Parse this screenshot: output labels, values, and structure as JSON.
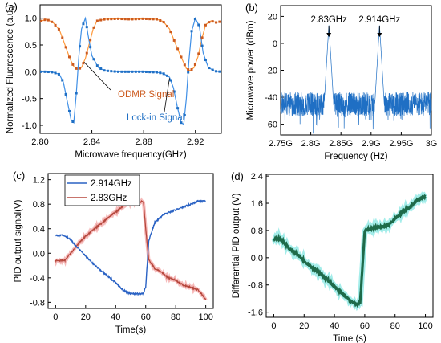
{
  "colors": {
    "odmr": "#cc5a1e",
    "odmr_line": "#ff9a3c",
    "lockin": "#1f6fc4",
    "lockin_line": "#3f8fe6",
    "spectrum": "#1f6fc4",
    "pid_blue": "#2a62c4",
    "pid_red": "#b5473c",
    "pid_red_shadow": "#f3a3a3",
    "diff": "#1e6b4a",
    "diff_shadow": "#7ee6e1"
  },
  "chart_data": [
    {
      "panel": "(a)",
      "type": "scatter",
      "xlabel": "Microwave frequency(GHz)",
      "ylabel": "Normalized Fluorescence (a.u.)",
      "xlim": [
        2.8,
        2.94
      ],
      "ylim": [
        -1.15,
        1.25
      ],
      "xticks": [
        "2.80",
        "2.84",
        "2.88",
        "2.92"
      ],
      "yticks": [
        "-1.0",
        "-0.5",
        "0.0",
        "0.5",
        "1.0"
      ],
      "annotations": [
        "ODMR Signal",
        "Lock-in Signal"
      ],
      "series": [
        {
          "x": [
            2.8,
            2.805,
            2.81,
            2.815,
            2.82,
            2.823,
            2.826,
            2.829,
            2.832,
            2.835,
            2.838,
            2.841,
            2.844,
            2.85,
            2.86,
            2.87,
            2.88,
            2.89,
            2.895,
            2.9,
            2.905,
            2.91,
            2.913,
            2.916,
            2.919,
            2.922,
            2.925,
            2.928,
            2.932,
            2.936,
            2.94
          ],
          "values": [
            0.94,
            0.98,
            0.92,
            0.78,
            0.45,
            0.25,
            0.1,
            0.04,
            0.08,
            0.25,
            0.52,
            0.8,
            0.95,
            0.98,
            0.99,
            0.98,
            0.99,
            0.98,
            0.94,
            0.8,
            0.5,
            0.22,
            0.06,
            0.02,
            0.08,
            0.28,
            0.62,
            0.88,
            0.95,
            0.92,
            0.94
          ]
        },
        {
          "x": [
            2.8,
            2.805,
            2.81,
            2.815,
            2.818,
            2.821,
            2.824,
            2.826,
            2.828,
            2.83,
            2.832,
            2.835,
            2.837,
            2.84,
            2.845,
            2.85,
            2.86,
            2.87,
            2.88,
            2.89,
            2.895,
            2.9,
            2.903,
            2.906,
            2.909,
            2.911,
            2.913,
            2.915,
            2.917,
            2.92,
            2.923,
            2.926,
            2.93,
            2.935,
            2.94
          ],
          "values": [
            0.0,
            0.0,
            -0.01,
            -0.05,
            -0.2,
            -0.55,
            -0.9,
            -0.95,
            -0.4,
            0.3,
            0.8,
            1.0,
            0.7,
            0.3,
            0.08,
            0.02,
            0.0,
            0.0,
            0.0,
            -0.01,
            -0.03,
            -0.1,
            -0.3,
            -0.65,
            -0.95,
            -0.98,
            -0.5,
            0.2,
            0.75,
            1.0,
            0.85,
            0.35,
            0.08,
            0.01,
            0.0
          ]
        }
      ]
    },
    {
      "panel": "(b)",
      "type": "line",
      "xlabel": "Frequency (Hz)",
      "ylabel": "Microwave power (dBm)",
      "xlim": [
        2.75,
        3.0
      ],
      "ylim": [
        -68,
        28
      ],
      "xticks": [
        "2.75G",
        "2.8G",
        "2.85G",
        "2.9G",
        "2.95G",
        "3G"
      ],
      "yticks": [
        "-60",
        "-40",
        "-20",
        "0",
        "20"
      ],
      "annotations": [
        "2.83GHz",
        "2.914GHz"
      ],
      "peaks": [
        {
          "x": 2.83,
          "value": 14
        },
        {
          "x": 2.914,
          "value": 14
        }
      ],
      "noise_floor": -45
    },
    {
      "panel": "(c)",
      "type": "line",
      "xlabel": "Time(s)",
      "ylabel": "PID output signal(V)",
      "xlim": [
        -5,
        105
      ],
      "ylim": [
        -0.9,
        1.3
      ],
      "xticks": [
        "0",
        "20",
        "40",
        "60",
        "80",
        "100"
      ],
      "yticks": [
        "-0.8",
        "-0.4",
        "0.0",
        "0.4",
        "0.8",
        "1.2"
      ],
      "series": [
        {
          "name": "2.914GHz",
          "x": [
            0,
            6,
            10,
            14,
            18,
            20,
            25,
            30,
            35,
            40,
            45,
            50,
            55,
            58.5,
            60,
            62,
            66,
            72,
            80,
            88,
            95,
            100
          ],
          "values": [
            0.29,
            0.29,
            0.22,
            0.1,
            0.01,
            -0.05,
            -0.17,
            -0.28,
            -0.38,
            -0.48,
            -0.6,
            -0.66,
            -0.66,
            -0.66,
            -0.55,
            0.2,
            0.5,
            0.63,
            0.71,
            0.78,
            0.85,
            0.85
          ]
        },
        {
          "name": "2.83GHz",
          "x": [
            0,
            6,
            10,
            15,
            20,
            25,
            30,
            35,
            40,
            45,
            50,
            55,
            58.5,
            60,
            62,
            66,
            70,
            75,
            80,
            85,
            90,
            95,
            100
          ],
          "values": [
            -0.12,
            -0.12,
            0.0,
            0.15,
            0.28,
            0.38,
            0.48,
            0.58,
            0.67,
            0.77,
            0.82,
            0.84,
            0.84,
            0.4,
            -0.1,
            -0.25,
            -0.3,
            -0.4,
            -0.44,
            -0.52,
            -0.55,
            -0.6,
            -0.75
          ]
        }
      ]
    },
    {
      "panel": "(d)",
      "type": "line",
      "xlabel": "Time (s)",
      "ylabel": "Differential PID output (V)",
      "xlim": [
        -5,
        105
      ],
      "ylim": [
        -1.75,
        2.45
      ],
      "xticks": [
        "0",
        "20",
        "40",
        "60",
        "80",
        "100"
      ],
      "yticks": [
        "-1.6",
        "-0.8",
        "0.0",
        "0.8",
        "1.6",
        "2.4"
      ],
      "series": [
        {
          "x": [
            0,
            5,
            10,
            15,
            20,
            25,
            30,
            35,
            40,
            45,
            50,
            55,
            57,
            60,
            65,
            70,
            75,
            80,
            85,
            90,
            95,
            100
          ],
          "values": [
            0.55,
            0.55,
            0.28,
            0.12,
            -0.1,
            -0.28,
            -0.45,
            -0.62,
            -0.85,
            -1.05,
            -1.25,
            -1.38,
            -1.3,
            0.8,
            0.87,
            0.9,
            0.95,
            1.15,
            1.35,
            1.5,
            1.7,
            1.8
          ]
        }
      ]
    }
  ]
}
